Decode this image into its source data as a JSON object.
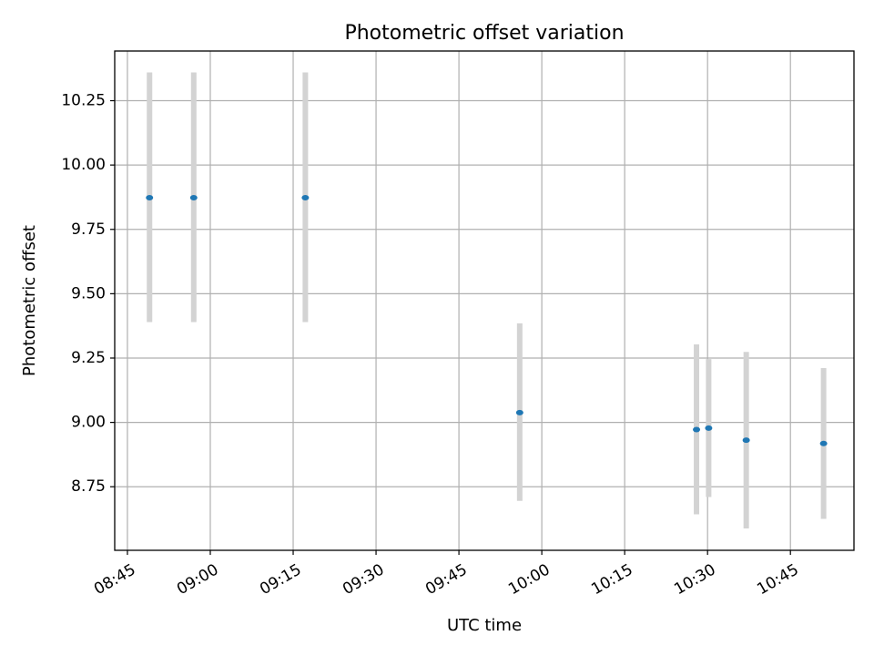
{
  "chart_data": {
    "type": "scatter",
    "title": "Photometric offset variation",
    "xlabel": "UTC time",
    "ylabel": "Photometric offset",
    "grid": true,
    "x_tick_labels": [
      "08:45",
      "09:00",
      "09:15",
      "09:30",
      "09:45",
      "10:00",
      "10:15",
      "10:30",
      "10:45"
    ],
    "x_tick_minutes": [
      525,
      540,
      555,
      570,
      585,
      600,
      615,
      630,
      645
    ],
    "x_range_minutes": [
      522.7,
      656.5
    ],
    "y_ticks": [
      8.75,
      9.0,
      9.25,
      9.5,
      9.75,
      10.0,
      10.25
    ],
    "y_tick_labels": [
      "8.75",
      "9.00",
      "9.25",
      "9.50",
      "9.75",
      "10.00",
      "10.25"
    ],
    "ylim": [
      8.503,
      10.443
    ],
    "point_color": "#1f77b4",
    "errorbar_color": "#d3d3d3",
    "points": [
      {
        "x_minutes": 529.0,
        "y": 9.873,
        "ylow": 9.39,
        "yhigh": 10.36
      },
      {
        "x_minutes": 537.0,
        "y": 9.873,
        "ylow": 9.39,
        "yhigh": 10.36
      },
      {
        "x_minutes": 557.2,
        "y": 9.873,
        "ylow": 9.39,
        "yhigh": 10.36
      },
      {
        "x_minutes": 596.0,
        "y": 9.038,
        "ylow": 8.695,
        "yhigh": 9.385
      },
      {
        "x_minutes": 628.0,
        "y": 8.972,
        "ylow": 8.643,
        "yhigh": 9.303
      },
      {
        "x_minutes": 630.2,
        "y": 8.978,
        "ylow": 8.71,
        "yhigh": 9.246
      },
      {
        "x_minutes": 637.0,
        "y": 8.931,
        "ylow": 8.588,
        "yhigh": 9.274
      },
      {
        "x_minutes": 651.0,
        "y": 8.918,
        "ylow": 8.625,
        "yhigh": 9.211
      }
    ]
  }
}
